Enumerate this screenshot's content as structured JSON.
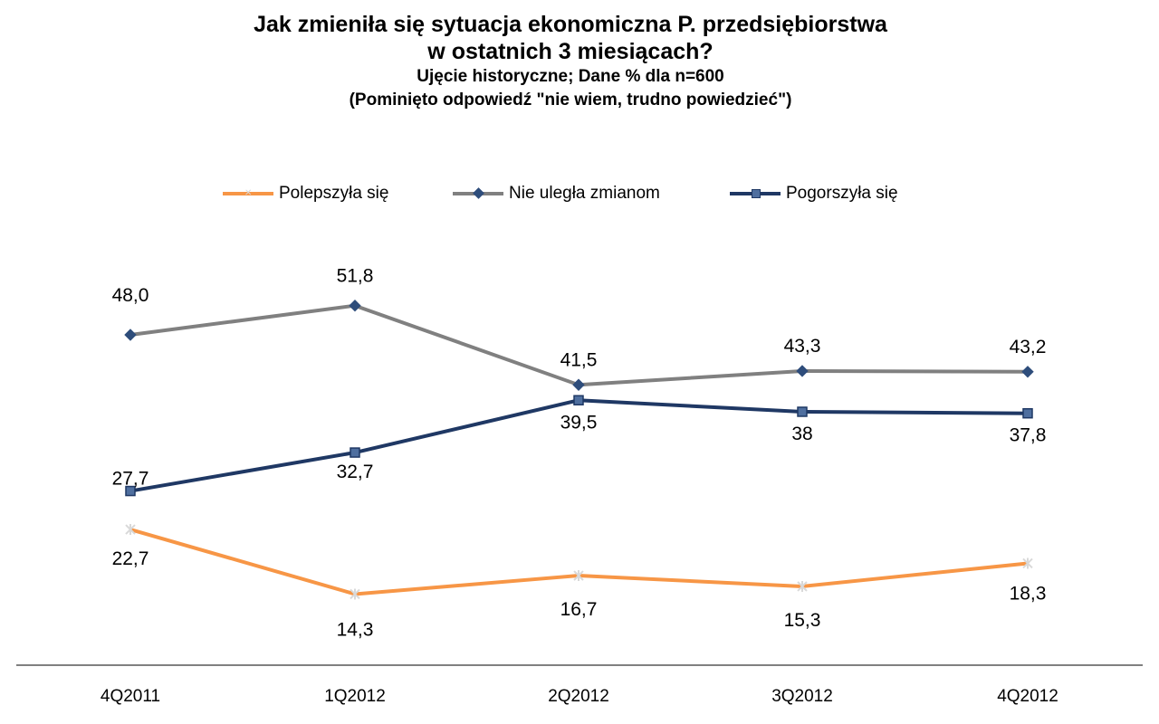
{
  "chart_data": {
    "type": "line",
    "title_line1": "Jak zmieniła się sytuacja ekonomiczna P. przedsiębiorstwa",
    "title_line2": "w ostatnich 3 miesiącach?",
    "subtitle_line1": "Ujęcie historyczne; Dane % dla n=600",
    "subtitle_line2": "(Pominięto odpowiedź  \"nie wiem, trudno powiedzieć\")",
    "categories": [
      "4Q2011",
      "1Q2012",
      "2Q2012",
      "3Q2012",
      "4Q2012"
    ],
    "ylim": [
      0,
      80
    ],
    "grid": false,
    "legend_position": "top-center",
    "series": [
      {
        "name": "Polepszyła się",
        "color": "#F79646",
        "marker": "star",
        "values": [
          22.7,
          14.3,
          16.7,
          15.3,
          18.3
        ],
        "labels": [
          "22,7",
          "14,3",
          "16,7",
          "15,3",
          "18,3"
        ]
      },
      {
        "name": "Nie uległa zmianom",
        "color": "#808080",
        "marker": "diamond",
        "values": [
          48.0,
          51.8,
          41.5,
          43.3,
          43.2
        ],
        "labels": [
          "48,0",
          "51,8",
          "41,5",
          "43,3",
          "43,2"
        ]
      },
      {
        "name": "Pogorszyła się",
        "color": "#1F3864",
        "marker": "square",
        "values": [
          27.7,
          32.7,
          39.5,
          38.0,
          37.8
        ],
        "labels": [
          "27,7",
          "32,7",
          "39,5",
          "38",
          "37,8"
        ]
      }
    ]
  }
}
